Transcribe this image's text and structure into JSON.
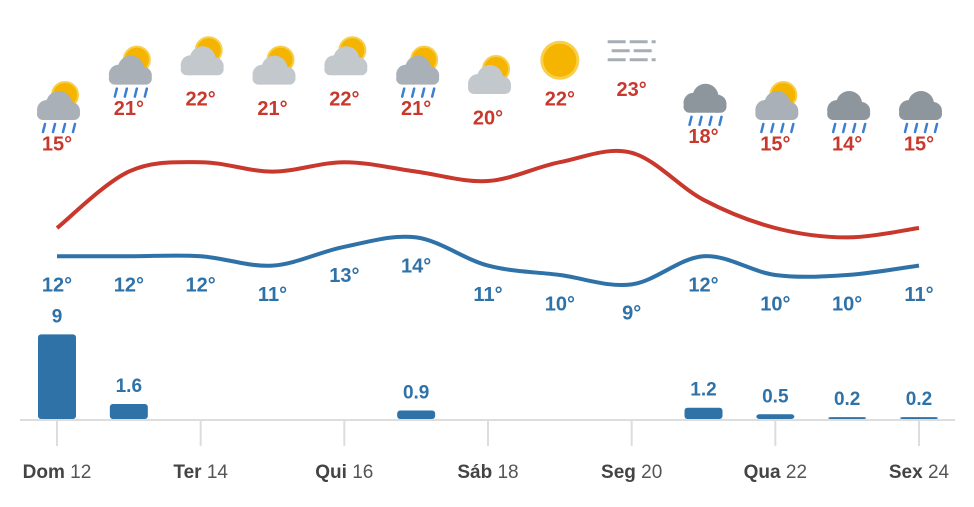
{
  "chart_data": {
    "type": "line",
    "categories": [
      "Dom 12",
      null,
      "Ter 14",
      null,
      "Qui 16",
      null,
      "Sáb 18",
      null,
      "Seg 20",
      null,
      "Qua 22",
      null,
      "Sex 24"
    ],
    "series": [
      {
        "color": "#c8382c",
        "values": [
          15,
          21,
          22,
          21,
          22,
          21,
          20,
          22,
          23,
          18,
          15,
          14,
          15
        ],
        "value_labels": [
          "15°",
          "21°",
          "22°",
          "21°",
          "22°",
          "21°",
          "20°",
          "22°",
          "23°",
          "18°",
          "15°",
          "14°",
          "15°"
        ]
      },
      {
        "color": "#2f72a8",
        "values": [
          12,
          12,
          12,
          11,
          13,
          14,
          11,
          10,
          9,
          12,
          10,
          10,
          11
        ],
        "value_labels": [
          "12°",
          "12°",
          "12°",
          "11°",
          "13°",
          "14°",
          "11°",
          "10°",
          "9°",
          "12°",
          "10°",
          "10°",
          "11°"
        ]
      }
    ],
    "precipitation": {
      "type": "bar",
      "color": "#2f72a8",
      "values": [
        9,
        1.6,
        null,
        null,
        null,
        0.9,
        null,
        null,
        null,
        1.2,
        0.5,
        0.2,
        0.2
      ]
    }
  }
}
